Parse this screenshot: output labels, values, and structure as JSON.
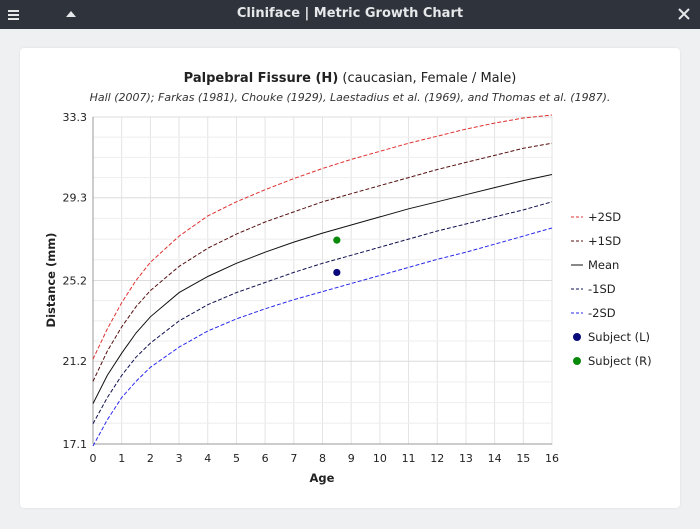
{
  "window": {
    "title": "Cliniface | Metric Growth Chart",
    "menu_icon": "hamburger-menu-icon",
    "up_icon": "triangle-up-icon",
    "close_icon": "close-x-icon"
  },
  "chart": {
    "title_bold": "Palpebral Fissure (H)",
    "title_rest": " (caucasian, Female / Male)",
    "subtitle": "Hall (2007); Farkas (1981), Chouke (1929), Laestadius et al. (1969), and Thomas et al. (1987)."
  },
  "chart_data": {
    "type": "line",
    "xlabel": "Age",
    "ylabel": "Distance (mm)",
    "xlim": [
      0,
      16
    ],
    "ylim": [
      17.1,
      33.3
    ],
    "x_ticks": [
      "0",
      "1",
      "2",
      "3",
      "4",
      "5",
      "6",
      "7",
      "8",
      "9",
      "10",
      "11",
      "12",
      "13",
      "14",
      "15",
      "16"
    ],
    "y_ticks": [
      "17.1",
      "21.2",
      "25.2",
      "29.3",
      "33.3"
    ],
    "y_tick_values": [
      17.1,
      21.2,
      25.2,
      29.3,
      33.3
    ],
    "grid": true,
    "legend_position": "right",
    "x": [
      0,
      0.5,
      1,
      1.5,
      2,
      3,
      4,
      5,
      6,
      7,
      8,
      9,
      10,
      11,
      12,
      13,
      14,
      15,
      16
    ],
    "series": [
      {
        "name": "+2SD",
        "color": "#e03030",
        "dash": "dashed",
        "values": [
          21.3,
          22.8,
          24.1,
          25.2,
          26.1,
          27.4,
          28.4,
          29.1,
          29.7,
          30.25,
          30.75,
          31.2,
          31.6,
          32.0,
          32.35,
          32.7,
          33.0,
          33.25,
          33.4
        ]
      },
      {
        "name": "+1SD",
        "color": "#551010",
        "dash": "dashed",
        "values": [
          20.2,
          21.7,
          22.9,
          23.9,
          24.7,
          25.9,
          26.8,
          27.5,
          28.1,
          28.6,
          29.1,
          29.5,
          29.9,
          30.3,
          30.7,
          31.05,
          31.4,
          31.75,
          32.0
        ]
      },
      {
        "name": "Mean",
        "color": "#111111",
        "dash": "solid",
        "values": [
          19.1,
          20.5,
          21.6,
          22.6,
          23.4,
          24.6,
          25.4,
          26.05,
          26.6,
          27.1,
          27.55,
          27.95,
          28.35,
          28.75,
          29.1,
          29.45,
          29.8,
          30.15,
          30.45
        ]
      },
      {
        "name": "-1SD",
        "color": "#101050",
        "dash": "dashed",
        "values": [
          18.1,
          19.4,
          20.5,
          21.4,
          22.1,
          23.2,
          24.0,
          24.6,
          25.1,
          25.6,
          26.05,
          26.45,
          26.85,
          27.25,
          27.65,
          28.0,
          28.35,
          28.7,
          29.1
        ]
      },
      {
        "name": "-2SD",
        "color": "#2a2aee",
        "dash": "dashed",
        "values": [
          17.0,
          18.3,
          19.4,
          20.2,
          20.9,
          21.9,
          22.7,
          23.3,
          23.8,
          24.25,
          24.65,
          25.05,
          25.45,
          25.85,
          26.25,
          26.6,
          27.0,
          27.4,
          27.8
        ]
      }
    ],
    "points": [
      {
        "name": "Subject (L)",
        "color": "#0a0a7a",
        "x": 8.5,
        "y": 25.6
      },
      {
        "name": "Subject (R)",
        "color": "#0a8a0a",
        "x": 8.5,
        "y": 27.2
      }
    ],
    "legend": [
      "+2SD",
      "+1SD",
      "Mean",
      "-1SD",
      "-2SD",
      "Subject (L)",
      "Subject (R)"
    ]
  }
}
